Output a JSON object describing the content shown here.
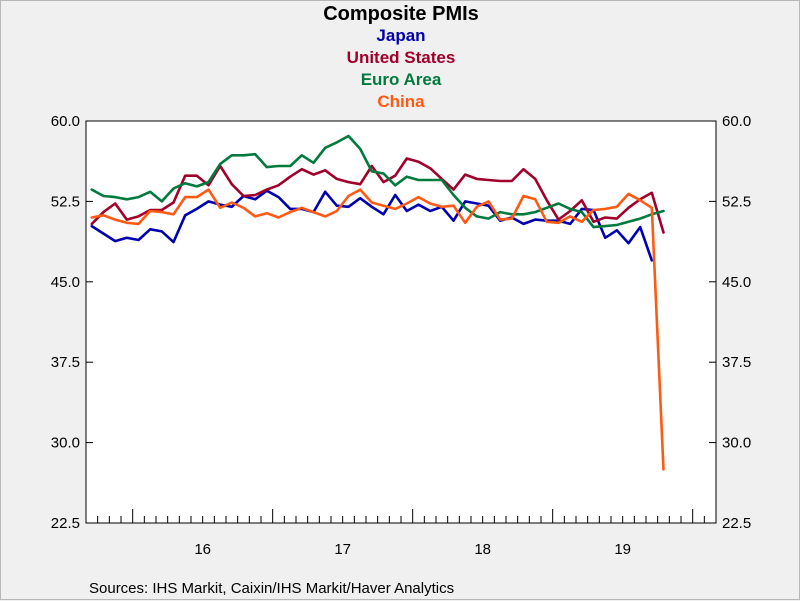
{
  "chart_data": {
    "type": "line",
    "title": "Composite PMIs",
    "xlabel": "",
    "ylabel": "",
    "ylim": [
      22.5,
      60.0
    ],
    "yticks": [
      "60.0",
      "52.5",
      "45.0",
      "37.5",
      "30.0",
      "22.5"
    ],
    "ytick_values": [
      60.0,
      52.5,
      45.0,
      37.5,
      30.0,
      22.5
    ],
    "xticks": [
      "16",
      "17",
      "18",
      "19"
    ],
    "x_start": "2015-09",
    "x_end": "2020-02",
    "x_unit": "month",
    "grid": false,
    "legend_placement": "top",
    "source": "Sources:  IHS Markit, Caixin/IHS Markit/Haver Analytics",
    "series": [
      {
        "name": "Japan",
        "color": "#0000b0",
        "values": [
          50.2,
          49.5,
          48.8,
          49.1,
          48.9,
          49.9,
          49.7,
          48.7,
          51.2,
          51.8,
          52.5,
          52.2,
          52.0,
          53.0,
          52.7,
          53.5,
          52.9,
          51.8,
          51.8,
          51.5,
          53.4,
          52.1,
          52.0,
          52.8,
          52.0,
          51.3,
          53.1,
          51.6,
          52.2,
          51.6,
          52.0,
          50.7,
          52.5,
          52.3,
          52.1,
          50.7,
          51.0,
          50.4,
          50.8,
          50.7,
          50.7,
          50.4,
          51.8,
          51.7,
          49.1,
          49.8,
          48.6,
          50.1,
          47.0
        ]
      },
      {
        "name": "United States",
        "color": "#a0002a",
        "values": [
          50.4,
          51.5,
          52.3,
          50.8,
          51.1,
          51.7,
          51.7,
          52.4,
          54.9,
          54.9,
          54.0,
          55.8,
          54.1,
          53.0,
          53.1,
          53.6,
          54.0,
          54.8,
          55.5,
          55.0,
          55.4,
          54.6,
          54.3,
          54.1,
          55.8,
          54.3,
          54.9,
          56.5,
          56.2,
          55.6,
          54.6,
          53.6,
          55.0,
          54.6,
          54.5,
          54.4,
          54.4,
          55.5,
          54.6,
          52.6,
          50.8,
          51.6,
          52.6,
          50.6,
          51.0,
          50.9,
          51.9,
          52.7,
          53.3,
          49.6
        ]
      },
      {
        "name": "Euro Area",
        "color": "#007a3d",
        "values": [
          53.6,
          53.0,
          52.9,
          52.7,
          52.9,
          53.4,
          52.5,
          53.7,
          54.2,
          53.9,
          54.3,
          56.0,
          56.8,
          56.8,
          56.9,
          55.7,
          55.8,
          55.8,
          56.8,
          56.1,
          57.5,
          58.0,
          58.6,
          57.4,
          55.3,
          55.1,
          54.0,
          54.8,
          54.5,
          54.5,
          54.5,
          53.1,
          51.9,
          51.1,
          50.9,
          51.5,
          51.3,
          51.3,
          51.5,
          51.9,
          52.3,
          51.8,
          51.5,
          50.1,
          50.2,
          50.3,
          50.6,
          50.9,
          51.3,
          51.6
        ]
      },
      {
        "name": "China",
        "color": "#ff5a14",
        "values": [
          51.0,
          51.2,
          50.8,
          50.5,
          50.4,
          51.6,
          51.5,
          51.3,
          52.9,
          52.9,
          53.6,
          51.9,
          52.4,
          51.9,
          51.1,
          51.4,
          51.0,
          51.5,
          51.9,
          51.5,
          51.1,
          51.6,
          53.0,
          53.6,
          52.4,
          52.1,
          51.8,
          52.3,
          52.9,
          52.3,
          52.0,
          52.1,
          50.5,
          52.0,
          52.5,
          50.8,
          50.9,
          53.0,
          52.7,
          50.6,
          50.5,
          51.1,
          50.6,
          51.7,
          51.8,
          52.0,
          53.2,
          52.6,
          51.9,
          27.5
        ]
      }
    ]
  }
}
